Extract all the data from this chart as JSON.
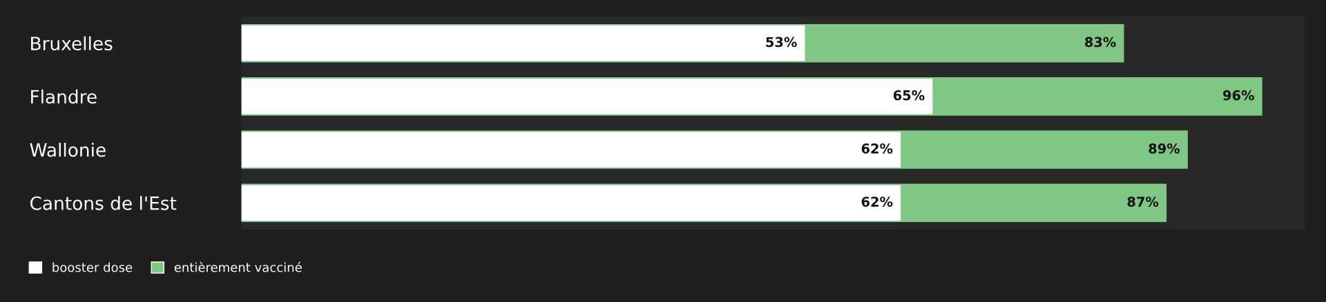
{
  "chart_data": {
    "type": "bar",
    "orientation": "horizontal",
    "categories": [
      "Bruxelles",
      "Flandre",
      "Wallonie",
      "Cantons de l'Est"
    ],
    "series": [
      {
        "name": "booster dose",
        "color": "#ffffff",
        "values": [
          53,
          65,
          62,
          62
        ],
        "value_labels": [
          "53%",
          "65%",
          "62%",
          "62%"
        ]
      },
      {
        "name": "entièrement vacciné",
        "color": "#81c784",
        "values": [
          83,
          96,
          89,
          87
        ],
        "value_labels": [
          "83%",
          "96%",
          "89%",
          "87%"
        ]
      }
    ],
    "xlim": [
      0,
      100
    ],
    "tick_labels": "y",
    "grid": false,
    "legend": "bottom left"
  }
}
